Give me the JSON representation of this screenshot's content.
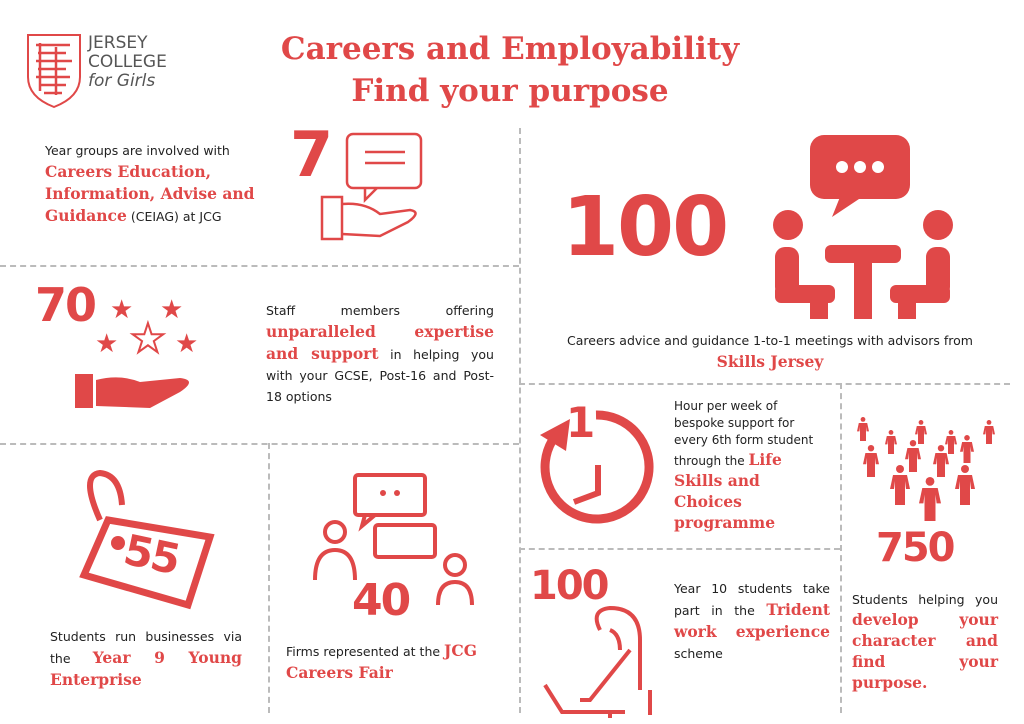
{
  "logo": {
    "line1": "JERSEY",
    "line2": "COLLEGE",
    "line3": "for Girls"
  },
  "title": {
    "line1": "Careers and Employability",
    "line2": "Find your purpose"
  },
  "colors": {
    "accent": "#e04848",
    "divider": "#bbbbbb"
  },
  "stats": [
    {
      "number": "7",
      "pre": "Year groups are involved with ",
      "highlight": "Careers Education, Information, Advise and Guidance",
      "post": " (CEIAG) at JCG",
      "icon": "speech-bubble-hand-icon"
    },
    {
      "number": "70",
      "pre": "Staff members offering ",
      "highlight": "unparalleled expertise and support",
      "post": " in helping you with your GCSE, Post-16 and Post-18 options",
      "icon": "stars-hand-icon"
    },
    {
      "number": "55",
      "pre": "Students run businesses via the ",
      "highlight": "Year 9 Young Enterprise",
      "post": "",
      "icon": "price-tag-icon"
    },
    {
      "number": "40",
      "pre": "Firms represented at the ",
      "highlight": "JCG Careers Fair",
      "post": "",
      "icon": "people-chat-icon"
    },
    {
      "number": "100",
      "pre": "Careers advice and guidance 1-to-1 meetings with advisors from ",
      "highlight": "Skills Jersey",
      "post": "",
      "icon": "meeting-icon"
    },
    {
      "number": "1",
      "pre": "Hour per week of bespoke support for every 6th form student through the ",
      "highlight": "Life Skills and Choices programme",
      "post": "",
      "icon": "clock-icon"
    },
    {
      "number": "100",
      "pre": "Year 10 students take part in the ",
      "highlight": "Trident work experience",
      "post": " scheme",
      "icon": "laptop-person-icon"
    },
    {
      "number": "750",
      "pre": "Students helping you ",
      "highlight": "develop your character and find your purpose.",
      "post": "",
      "icon": "crowd-icon"
    }
  ]
}
